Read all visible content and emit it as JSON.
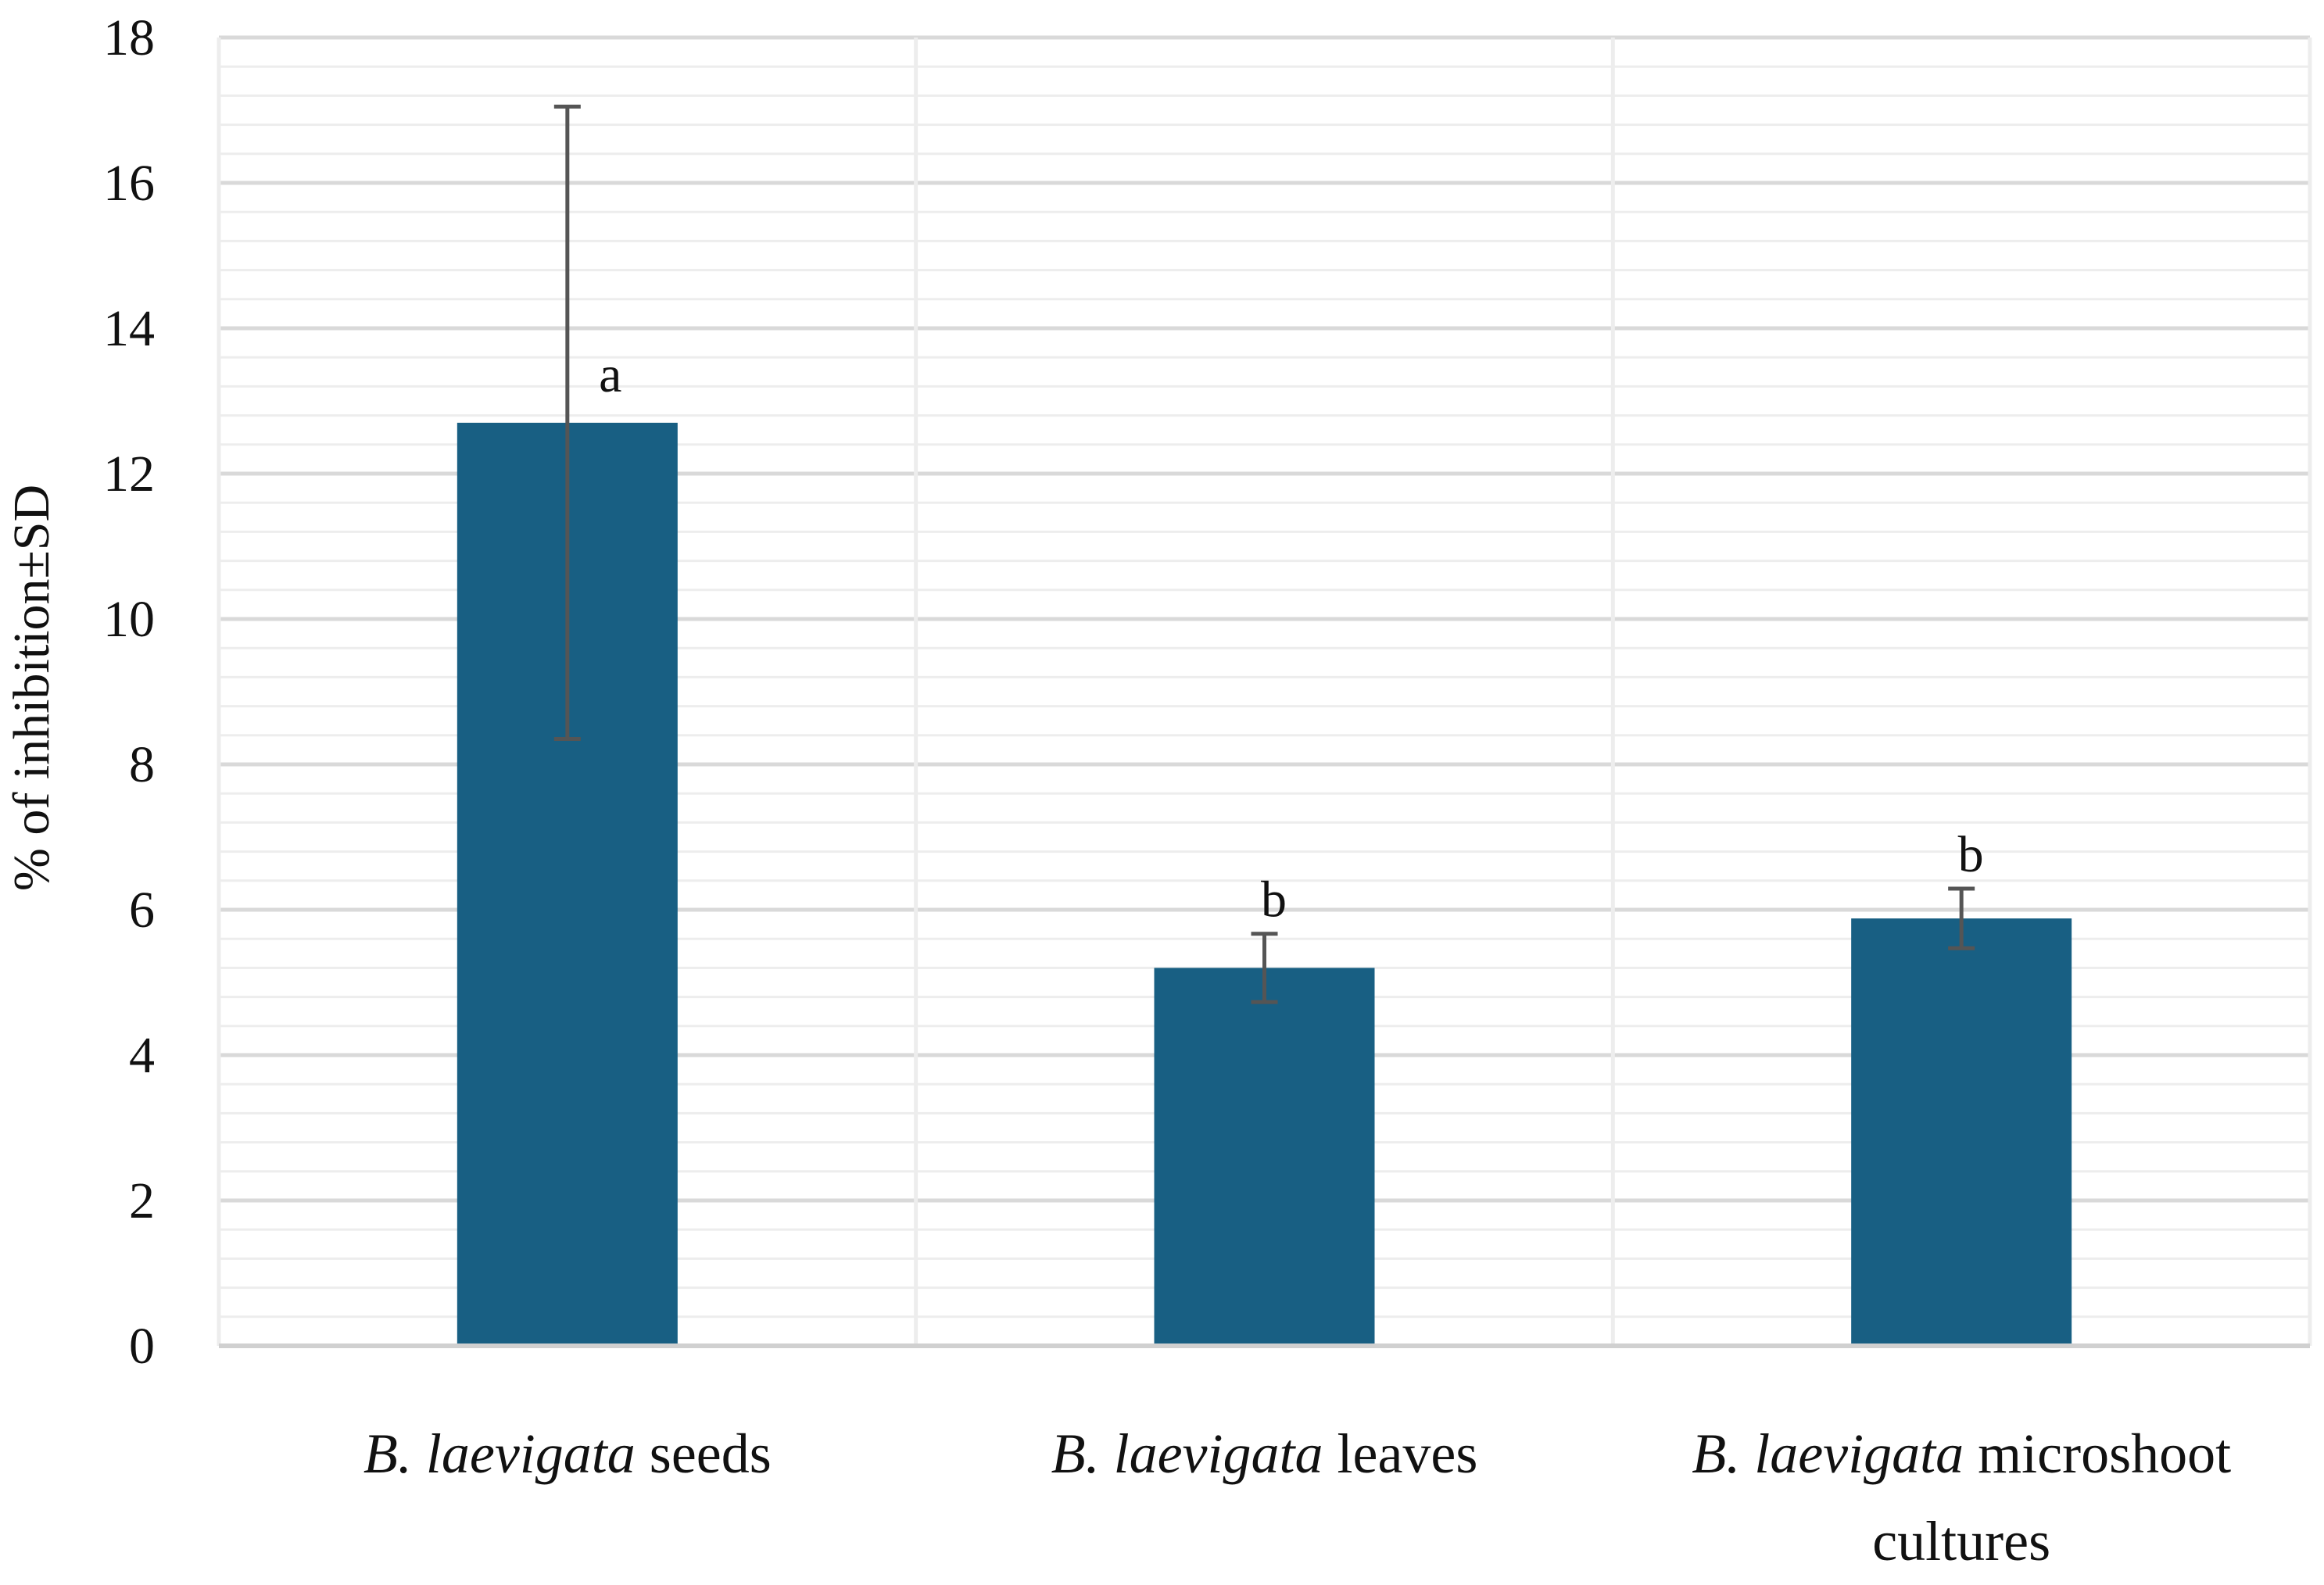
{
  "chart_data": {
    "type": "bar",
    "title": "",
    "xlabel": "",
    "ylabel": "% of inhibition±SD",
    "ylim": [
      0,
      18
    ],
    "yticks": [
      0,
      2,
      4,
      6,
      8,
      10,
      12,
      14,
      16,
      18
    ],
    "ytick_labels": [
      "0",
      "2",
      "4",
      "6",
      "8",
      "10",
      "12",
      "14",
      "16",
      "18"
    ],
    "grid": true,
    "categories": [
      {
        "name": "B. laevigata seeds",
        "italic_part": "B. laevigata",
        "plain_part": "seeds",
        "second_line": "",
        "value": 12.7,
        "error": 4.35,
        "significance": "a"
      },
      {
        "name": "B. laevigata leaves",
        "italic_part": "B. laevigata",
        "plain_part": "leaves",
        "second_line": "",
        "value": 5.2,
        "error": 0.47,
        "significance": "b"
      },
      {
        "name": "B. laevigata microshoot cultures",
        "italic_part": "B. laevigata",
        "plain_part": "microshoot",
        "second_line": "cultures",
        "value": 5.88,
        "error": 0.41,
        "significance": "b"
      }
    ],
    "colors": {
      "bar": "#185F83",
      "error_bar": "#555555",
      "grid_major": "#D9D9D9",
      "grid_minor": "#EDEDED",
      "axis": "#D0D0D0"
    }
  }
}
